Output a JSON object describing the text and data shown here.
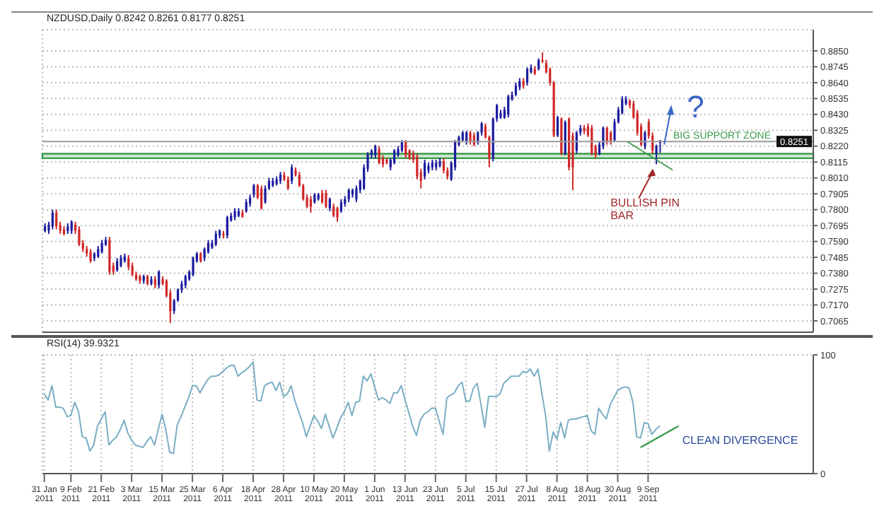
{
  "chart_data": [
    {
      "type": "candlestick",
      "title": "NZDUSD,Daily 0.8242 0.8261 0.8177 0.8251",
      "categories": [
        null,
        null,
        null,
        null,
        null,
        null,
        null,
        null,
        null,
        null,
        null,
        null,
        null,
        null,
        null,
        null,
        null,
        null,
        null,
        null,
        null,
        null,
        null,
        null,
        null,
        null,
        null,
        null,
        null,
        null,
        null,
        null,
        null,
        null,
        null,
        null,
        null,
        null,
        null,
        null,
        null,
        null,
        null,
        null,
        null,
        null,
        null,
        null,
        null,
        null,
        null,
        null,
        null,
        null,
        null,
        null,
        null,
        null,
        null,
        null,
        null,
        null,
        null,
        null,
        null,
        null,
        null,
        null,
        null,
        null,
        null,
        null,
        null,
        null,
        null,
        null,
        null,
        null,
        null,
        null,
        null,
        null,
        null,
        null,
        null,
        null,
        null,
        null,
        null,
        null,
        null,
        null,
        null,
        null,
        null,
        null,
        null,
        null,
        null,
        null,
        null,
        null,
        null,
        null,
        null,
        null,
        null,
        null,
        null,
        null,
        null,
        null,
        null,
        null,
        null,
        null,
        null,
        null,
        null,
        null,
        null,
        null,
        null,
        null,
        null,
        null,
        null,
        null,
        null,
        null,
        null,
        null,
        null,
        null,
        null,
        null,
        null,
        null,
        null,
        null,
        null,
        null,
        null,
        null,
        null,
        null,
        null,
        null,
        null,
        null,
        null,
        null,
        null,
        null,
        null,
        null,
        null,
        null,
        null,
        null,
        null,
        null,
        null,
        null,
        null,
        null,
        null,
        null,
        null,
        null,
        null,
        null,
        null,
        null,
        null,
        null,
        null,
        null,
        null,
        null,
        null,
        null,
        null,
        null,
        null,
        null,
        null,
        null,
        null,
        null,
        null,
        null,
        null,
        null,
        null,
        null,
        null,
        null,
        null,
        null,
        null,
        null,
        null
      ],
      "ohlc": [
        [
          0.766,
          0.771,
          0.765,
          0.769
        ],
        [
          0.766,
          0.772,
          0.764,
          0.77
        ],
        [
          0.769,
          0.78,
          0.767,
          0.778
        ],
        [
          0.778,
          0.78,
          0.767,
          0.769
        ],
        [
          0.77,
          0.772,
          0.764,
          0.766
        ],
        [
          0.767,
          0.769,
          0.763,
          0.764
        ],
        [
          0.766,
          0.771,
          0.764,
          0.769
        ],
        [
          0.766,
          0.773,
          0.764,
          0.772
        ],
        [
          0.77,
          0.772,
          0.764,
          0.766
        ],
        [
          0.767,
          0.769,
          0.756,
          0.757
        ],
        [
          0.758,
          0.76,
          0.752,
          0.754
        ],
        [
          0.754,
          0.756,
          0.749,
          0.751
        ],
        [
          0.752,
          0.754,
          0.745,
          0.746
        ],
        [
          0.748,
          0.752,
          0.746,
          0.751
        ],
        [
          0.749,
          0.756,
          0.748,
          0.754
        ],
        [
          0.752,
          0.76,
          0.751,
          0.758
        ],
        [
          0.757,
          0.762,
          0.756,
          0.76
        ],
        [
          0.76,
          0.762,
          0.737,
          0.739
        ],
        [
          0.743,
          0.745,
          0.737,
          0.739
        ],
        [
          0.74,
          0.748,
          0.739,
          0.746
        ],
        [
          0.743,
          0.75,
          0.742,
          0.748
        ],
        [
          0.746,
          0.751,
          0.745,
          0.749
        ],
        [
          0.748,
          0.75,
          0.74,
          0.742
        ],
        [
          0.743,
          0.745,
          0.736,
          0.737
        ],
        [
          0.737,
          0.739,
          0.733,
          0.734
        ],
        [
          0.736,
          0.737,
          0.731,
          0.733
        ],
        [
          0.733,
          0.737,
          0.731,
          0.736
        ],
        [
          0.736,
          0.737,
          0.73,
          0.731
        ],
        [
          0.731,
          0.736,
          0.73,
          0.734
        ],
        [
          0.734,
          0.736,
          0.728,
          0.73
        ],
        [
          0.73,
          0.74,
          0.728,
          0.739
        ],
        [
          0.734,
          0.736,
          0.73,
          0.731
        ],
        [
          0.733,
          0.734,
          0.722,
          0.723
        ],
        [
          0.725,
          0.727,
          0.705,
          0.713
        ],
        [
          0.713,
          0.721,
          0.711,
          0.72
        ],
        [
          0.72,
          0.728,
          0.719,
          0.727
        ],
        [
          0.727,
          0.733,
          0.725,
          0.731
        ],
        [
          0.73,
          0.737,
          0.728,
          0.736
        ],
        [
          0.734,
          0.74,
          0.733,
          0.739
        ],
        [
          0.737,
          0.749,
          0.736,
          0.748
        ],
        [
          0.746,
          0.752,
          0.745,
          0.751
        ],
        [
          0.751,
          0.752,
          0.745,
          0.746
        ],
        [
          0.748,
          0.755,
          0.746,
          0.754
        ],
        [
          0.752,
          0.76,
          0.751,
          0.758
        ],
        [
          0.755,
          0.76,
          0.754,
          0.758
        ],
        [
          0.757,
          0.766,
          0.756,
          0.764
        ],
        [
          0.763,
          0.767,
          0.761,
          0.766
        ],
        [
          0.764,
          0.766,
          0.761,
          0.763
        ],
        [
          0.763,
          0.776,
          0.761,
          0.775
        ],
        [
          0.773,
          0.778,
          0.772,
          0.776
        ],
        [
          0.775,
          0.781,
          0.773,
          0.779
        ],
        [
          0.776,
          0.781,
          0.775,
          0.779
        ],
        [
          0.778,
          0.78,
          0.775,
          0.775
        ],
        [
          0.779,
          0.787,
          0.778,
          0.785
        ],
        [
          0.784,
          0.79,
          0.782,
          0.788
        ],
        [
          0.79,
          0.797,
          0.788,
          0.796
        ],
        [
          0.796,
          0.797,
          0.787,
          0.788
        ],
        [
          0.794,
          0.796,
          0.78,
          0.781
        ],
        [
          0.785,
          0.796,
          0.784,
          0.794
        ],
        [
          0.794,
          0.801,
          0.793,
          0.799
        ],
        [
          0.796,
          0.801,
          0.795,
          0.799
        ],
        [
          0.797,
          0.802,
          0.796,
          0.8
        ],
        [
          0.799,
          0.805,
          0.797,
          0.803
        ],
        [
          0.803,
          0.805,
          0.799,
          0.8
        ],
        [
          0.8,
          0.802,
          0.793,
          0.794
        ],
        [
          0.799,
          0.81,
          0.797,
          0.808
        ],
        [
          0.806,
          0.808,
          0.802,
          0.803
        ],
        [
          0.803,
          0.805,
          0.795,
          0.796
        ],
        [
          0.796,
          0.797,
          0.786,
          0.787
        ],
        [
          0.788,
          0.79,
          0.781,
          0.782
        ],
        [
          0.787,
          0.789,
          0.778,
          0.782
        ],
        [
          0.785,
          0.791,
          0.784,
          0.79
        ],
        [
          0.787,
          0.791,
          0.786,
          0.79
        ],
        [
          0.791,
          0.793,
          0.784,
          0.785
        ],
        [
          0.791,
          0.793,
          0.781,
          0.782
        ],
        [
          0.781,
          0.788,
          0.779,
          0.787
        ],
        [
          0.782,
          0.784,
          0.775,
          0.776
        ],
        [
          0.781,
          0.782,
          0.772,
          0.775
        ],
        [
          0.779,
          0.787,
          0.778,
          0.785
        ],
        [
          0.784,
          0.789,
          0.782,
          0.787
        ],
        [
          0.787,
          0.794,
          0.785,
          0.793
        ],
        [
          0.79,
          0.794,
          0.788,
          0.793
        ],
        [
          0.787,
          0.796,
          0.785,
          0.794
        ],
        [
          0.793,
          0.8,
          0.791,
          0.799
        ],
        [
          0.794,
          0.81,
          0.793,
          0.808
        ],
        [
          0.807,
          0.818,
          0.805,
          0.817
        ],
        [
          0.816,
          0.82,
          0.814,
          0.819
        ],
        [
          0.816,
          0.823,
          0.814,
          0.822
        ],
        [
          0.82,
          0.822,
          0.81,
          0.811
        ],
        [
          0.814,
          0.816,
          0.808,
          0.81
        ],
        [
          0.813,
          0.814,
          0.81,
          0.811
        ],
        [
          0.808,
          0.814,
          0.806,
          0.813
        ],
        [
          0.811,
          0.82,
          0.81,
          0.819
        ],
        [
          0.816,
          0.822,
          0.815,
          0.82
        ],
        [
          0.819,
          0.826,
          0.818,
          0.825
        ],
        [
          0.825,
          0.826,
          0.814,
          0.816
        ],
        [
          0.819,
          0.82,
          0.813,
          0.814
        ],
        [
          0.817,
          0.819,
          0.811,
          0.813
        ],
        [
          0.815,
          0.817,
          0.8,
          0.802
        ],
        [
          0.805,
          0.807,
          0.794,
          0.799
        ],
        [
          0.802,
          0.813,
          0.8,
          0.811
        ],
        [
          0.806,
          0.811,
          0.804,
          0.809
        ],
        [
          0.808,
          0.813,
          0.806,
          0.811
        ],
        [
          0.808,
          0.813,
          0.806,
          0.811
        ],
        [
          0.809,
          0.814,
          0.808,
          0.812
        ],
        [
          0.812,
          0.814,
          0.804,
          0.806
        ],
        [
          0.806,
          0.808,
          0.8,
          0.802
        ],
        [
          0.8,
          0.812,
          0.799,
          0.811
        ],
        [
          0.808,
          0.826,
          0.806,
          0.825
        ],
        [
          0.823,
          0.829,
          0.822,
          0.828
        ],
        [
          0.826,
          0.832,
          0.825,
          0.831
        ],
        [
          0.825,
          0.832,
          0.823,
          0.831
        ],
        [
          0.831,
          0.832,
          0.823,
          0.825
        ],
        [
          0.829,
          0.831,
          0.822,
          0.823
        ],
        [
          0.825,
          0.832,
          0.823,
          0.831
        ],
        [
          0.831,
          0.838,
          0.829,
          0.837
        ],
        [
          0.835,
          0.837,
          0.827,
          0.828
        ],
        [
          0.828,
          0.829,
          0.808,
          0.814
        ],
        [
          0.814,
          0.841,
          0.812,
          0.84
        ],
        [
          0.84,
          0.85,
          0.838,
          0.849
        ],
        [
          0.841,
          0.846,
          0.84,
          0.844
        ],
        [
          0.841,
          0.848,
          0.84,
          0.846
        ],
        [
          0.843,
          0.856,
          0.841,
          0.855
        ],
        [
          0.853,
          0.858,
          0.852,
          0.856
        ],
        [
          0.856,
          0.864,
          0.855,
          0.862
        ],
        [
          0.861,
          0.867,
          0.859,
          0.865
        ],
        [
          0.865,
          0.867,
          0.86,
          0.862
        ],
        [
          0.864,
          0.874,
          0.862,
          0.873
        ],
        [
          0.871,
          0.876,
          0.87,
          0.874
        ],
        [
          0.873,
          0.875,
          0.869,
          0.87
        ],
        [
          0.873,
          0.88,
          0.872,
          0.879
        ],
        [
          0.879,
          0.884,
          0.877,
          0.878
        ],
        [
          0.877,
          0.879,
          0.87,
          0.871
        ],
        [
          0.873,
          0.874,
          0.862,
          0.864
        ],
        [
          0.864,
          0.865,
          0.828,
          0.829
        ],
        [
          0.829,
          0.842,
          0.828,
          0.841
        ],
        [
          0.84,
          0.841,
          0.816,
          0.817
        ],
        [
          0.817,
          0.839,
          0.816,
          0.838
        ],
        [
          0.84,
          0.841,
          0.806,
          0.808
        ],
        [
          0.829,
          0.831,
          0.793,
          0.808
        ],
        [
          0.819,
          0.832,
          0.817,
          0.831
        ],
        [
          0.831,
          0.836,
          0.829,
          0.834
        ],
        [
          0.834,
          0.836,
          0.83,
          0.832
        ],
        [
          0.835,
          0.837,
          0.828,
          0.829
        ],
        [
          0.834,
          0.836,
          0.816,
          0.817
        ],
        [
          0.822,
          0.823,
          0.814,
          0.816
        ],
        [
          0.817,
          0.825,
          0.816,
          0.823
        ],
        [
          0.822,
          0.835,
          0.82,
          0.834
        ],
        [
          0.834,
          0.835,
          0.823,
          0.825
        ],
        [
          0.831,
          0.832,
          0.823,
          0.825
        ],
        [
          0.826,
          0.84,
          0.825,
          0.838
        ],
        [
          0.838,
          0.848,
          0.837,
          0.846
        ],
        [
          0.844,
          0.855,
          0.843,
          0.853
        ],
        [
          0.85,
          0.855,
          0.849,
          0.853
        ],
        [
          0.852,
          0.853,
          0.847,
          0.849
        ],
        [
          0.85,
          0.852,
          0.84,
          0.841
        ],
        [
          0.844,
          0.846,
          0.829,
          0.831
        ],
        [
          0.835,
          0.837,
          0.822,
          0.823
        ],
        [
          0.822,
          0.832,
          0.82,
          0.831
        ],
        [
          0.838,
          0.84,
          0.827,
          0.829
        ],
        [
          0.829,
          0.831,
          0.817,
          0.819
        ],
        [
          0.817,
          0.823,
          0.81,
          0.822
        ],
        [
          0.8242,
          0.8261,
          0.8177,
          0.8251
        ],
        null,
        null,
        null,
        null,
        null,
        null,
        null,
        null,
        null,
        null,
        null,
        null,
        null,
        null,
        null,
        null,
        null,
        null,
        null,
        null,
        null,
        null,
        null,
        null,
        null,
        null,
        null,
        null,
        null,
        null,
        null,
        null,
        null,
        null,
        null,
        null,
        null,
        null,
        null,
        null
      ],
      "colors": [
        "#1c1ca0",
        "#1c1ca0",
        "#1c1ca0",
        "#d02828",
        "#d02828",
        "#d02828",
        "#1c1ca0",
        "#1c1ca0",
        "#d02828",
        "#d02828",
        "#d02828",
        "#d02828",
        "#d02828",
        "#1c1ca0",
        "#1c1ca0",
        "#1c1ca0",
        "#1c1ca0",
        "#d02828",
        "#d02828",
        "#1c1ca0",
        "#1c1ca0",
        "#1c1ca0",
        "#d02828",
        "#d02828",
        "#d02828",
        "#d02828",
        "#1c1ca0",
        "#d02828",
        "#1c1ca0",
        "#d02828",
        "#1c1ca0",
        "#d02828",
        "#d02828",
        "#d02828",
        "#1c1ca0",
        "#1c1ca0",
        "#1c1ca0",
        "#1c1ca0",
        "#1c1ca0",
        "#1c1ca0",
        "#1c1ca0",
        "#d02828",
        "#1c1ca0",
        "#1c1ca0",
        "#1c1ca0",
        "#1c1ca0",
        "#1c1ca0",
        "#d02828",
        "#1c1ca0",
        "#1c1ca0",
        "#1c1ca0",
        "#1c1ca0",
        "#d02828",
        "#1c1ca0",
        "#1c1ca0",
        "#1c1ca0",
        "#d02828",
        "#d02828",
        "#1c1ca0",
        "#1c1ca0",
        "#1c1ca0",
        "#1c1ca0",
        "#1c1ca0",
        "#d02828",
        "#d02828",
        "#1c1ca0",
        "#d02828",
        "#d02828",
        "#d02828",
        "#d02828",
        "#d02828",
        "#1c1ca0",
        "#1c1ca0",
        "#d02828",
        "#d02828",
        "#1c1ca0",
        "#d02828",
        "#d02828",
        "#1c1ca0",
        "#1c1ca0",
        "#1c1ca0",
        "#1c1ca0",
        "#1c1ca0",
        "#1c1ca0",
        "#1c1ca0",
        "#1c1ca0",
        "#1c1ca0",
        "#1c1ca0",
        "#d02828",
        "#d02828",
        "#d02828",
        "#1c1ca0",
        "#1c1ca0",
        "#1c1ca0",
        "#1c1ca0",
        "#d02828",
        "#d02828",
        "#d02828",
        "#d02828",
        "#d02828",
        "#1c1ca0",
        "#1c1ca0",
        "#1c1ca0",
        "#1c1ca0",
        "#1c1ca0",
        "#d02828",
        "#d02828",
        "#1c1ca0",
        "#1c1ca0",
        "#1c1ca0",
        "#1c1ca0",
        "#1c1ca0",
        "#d02828",
        "#d02828",
        "#1c1ca0",
        "#1c1ca0",
        "#d02828",
        "#d02828",
        "#1c1ca0",
        "#1c1ca0",
        "#1c1ca0",
        "#1c1ca0",
        "#1c1ca0",
        "#1c1ca0",
        "#1c1ca0",
        "#1c1ca0",
        "#d02828",
        "#1c1ca0",
        "#1c1ca0",
        "#d02828",
        "#1c1ca0",
        "#d02828",
        "#d02828",
        "#d02828",
        "#d02828",
        "#1c1ca0",
        "#d02828",
        "#1c1ca0",
        "#d02828",
        "#d02828",
        "#1c1ca0",
        "#1c1ca0",
        "#d02828",
        "#d02828",
        "#d02828",
        "#d02828",
        "#1c1ca0",
        "#1c1ca0",
        "#d02828",
        "#d02828",
        "#1c1ca0",
        "#1c1ca0",
        "#1c1ca0",
        "#1c1ca0",
        "#d02828",
        "#d02828",
        "#d02828",
        "#d02828",
        "#1c1ca0",
        "#d02828",
        "#d02828",
        "#1c1ca0",
        "#1c1ca0",
        null,
        null,
        null,
        null,
        null,
        null,
        null,
        null,
        null,
        null,
        null,
        null,
        null,
        null,
        null,
        null,
        null,
        null,
        null,
        null,
        null,
        null,
        null,
        null,
        null,
        null,
        null,
        null,
        null,
        null,
        null,
        null,
        null,
        null,
        null,
        null,
        null,
        null,
        null,
        null
      ],
      "ylim": [
        0.699,
        0.899
      ],
      "yticks": [
        {
          "value": 0.7065,
          "label": "0.7065"
        },
        {
          "value": 0.717,
          "label": "0.7170"
        },
        {
          "value": 0.7275,
          "label": "0.7275"
        },
        {
          "value": 0.738,
          "label": "0.7380"
        },
        {
          "value": 0.7485,
          "label": "0.7485"
        },
        {
          "value": 0.759,
          "label": "0.7590"
        },
        {
          "value": 0.7695,
          "label": "0.7695"
        },
        {
          "value": 0.78,
          "label": "0.7800"
        },
        {
          "value": 0.7905,
          "label": "0.7905"
        },
        {
          "value": 0.801,
          "label": "0.8010"
        },
        {
          "value": 0.8115,
          "label": "0.8115"
        },
        {
          "value": 0.822,
          "label": "0.8220"
        },
        {
          "value": 0.8325,
          "label": "0.8325"
        },
        {
          "value": 0.843,
          "label": "0.8430"
        },
        {
          "value": 0.8535,
          "label": "0.8535"
        },
        {
          "value": 0.864,
          "label": "0.8640"
        },
        {
          "value": 0.8745,
          "label": "0.8745"
        },
        {
          "value": 0.885,
          "label": "0.8850"
        }
      ],
      "grid": true,
      "tick_labels": "y",
      "bands": [
        {
          "axis": "y",
          "from": 0.814,
          "to": 0.817,
          "label": "BIG SUPPORT ZONE",
          "color": "#3a9a4a"
        }
      ],
      "ref_lines": [
        {
          "axis": "y",
          "value": 0.8251,
          "label": "0.8251",
          "color": "#9a9a9a"
        }
      ],
      "annotations": [
        "BULLISH PIN BAR",
        "?"
      ]
    },
    {
      "type": "line",
      "title": "RSI(14) 39.9321",
      "categories": [
        "31 Jan 2011",
        null,
        null,
        null,
        null,
        null,
        null,
        "9 Feb 2011",
        null,
        null,
        null,
        null,
        null,
        null,
        null,
        "21 Feb 2011",
        null,
        null,
        null,
        null,
        null,
        null,
        null,
        "3 Mar 2011",
        null,
        null,
        null,
        null,
        null,
        null,
        null,
        "15 Mar 2011",
        null,
        null,
        null,
        null,
        null,
        null,
        null,
        "25 Mar 2011",
        null,
        null,
        null,
        null,
        null,
        null,
        null,
        "6 Apr 2011",
        null,
        null,
        null,
        null,
        null,
        null,
        null,
        "18 Apr 2011",
        null,
        null,
        null,
        null,
        null,
        null,
        null,
        "28 Apr 2011",
        null,
        null,
        null,
        null,
        null,
        null,
        null,
        "10 May 2011",
        null,
        null,
        null,
        null,
        null,
        null,
        null,
        "20 May 2011",
        null,
        null,
        null,
        null,
        null,
        null,
        null,
        "1 Jun 2011",
        null,
        null,
        null,
        null,
        null,
        null,
        null,
        "13 Jun 2011",
        null,
        null,
        null,
        null,
        null,
        null,
        null,
        "23 Jun 2011",
        null,
        null,
        null,
        null,
        null,
        null,
        null,
        "5 Jul 2011",
        null,
        null,
        null,
        null,
        null,
        null,
        null,
        "15 Jul 2011",
        null,
        null,
        null,
        null,
        null,
        null,
        null,
        "27 Jul 2011",
        null,
        null,
        null,
        null,
        null,
        null,
        null,
        "8 Aug 2011",
        null,
        null,
        null,
        null,
        null,
        null,
        null,
        "18 Aug 2011",
        null,
        null,
        null,
        null,
        null,
        null,
        null,
        "30 Aug 2011",
        null,
        null,
        null,
        null,
        null,
        null,
        null,
        "9 Sep 2011",
        null,
        null,
        null,
        null,
        null,
        null,
        null,
        null,
        null,
        null,
        null,
        null,
        null,
        null,
        null,
        null,
        null,
        null,
        null,
        null,
        null,
        null,
        null,
        null,
        null,
        null,
        null,
        null,
        null,
        null,
        null,
        null,
        null,
        null,
        null,
        null,
        null,
        null,
        null,
        null,
        null,
        null,
        null
      ],
      "values": [
        67,
        62,
        74,
        56,
        56,
        55,
        48,
        49,
        60,
        52,
        31,
        30,
        19,
        24,
        40,
        46,
        52,
        24,
        28,
        31,
        37,
        45,
        34,
        28,
        24,
        23,
        22,
        27,
        31,
        24,
        37,
        50,
        37,
        18,
        17,
        41,
        48,
        56,
        64,
        74,
        74,
        68,
        74,
        79,
        82,
        82,
        83,
        86,
        89,
        91,
        91,
        82,
        85,
        87,
        90,
        94,
        62,
        61,
        74,
        76,
        77,
        70,
        77,
        65,
        67,
        74,
        61,
        52,
        43,
        31,
        40,
        49,
        44,
        38,
        50,
        40,
        30,
        38,
        47,
        52,
        60,
        49,
        60,
        61,
        82,
        78,
        84,
        73,
        62,
        64,
        62,
        59,
        68,
        68,
        74,
        62,
        51,
        40,
        32,
        45,
        50,
        52,
        55,
        55,
        44,
        33,
        64,
        66,
        68,
        74,
        77,
        61,
        61,
        72,
        76,
        58,
        39,
        65,
        65,
        65,
        67,
        76,
        79,
        82,
        82,
        82,
        86,
        85,
        88,
        82,
        88,
        68,
        49,
        19,
        35,
        29,
        43,
        30,
        45,
        46,
        46,
        47,
        48,
        49,
        36,
        33,
        55,
        50,
        46,
        58,
        64,
        70,
        72,
        73,
        72,
        60,
        31,
        30,
        43,
        42,
        33,
        37,
        39.9321,
        null,
        null,
        null,
        null,
        null,
        null,
        null,
        null,
        null,
        null,
        null,
        null,
        null,
        null,
        null,
        null,
        null,
        null,
        null,
        null,
        null,
        null,
        null,
        null,
        null,
        null,
        null,
        null,
        null,
        null,
        null,
        null,
        null,
        null,
        null,
        null,
        null,
        null,
        null,
        null
      ],
      "color": "#7aaec4",
      "ylim": [
        0,
        100
      ],
      "yticks": [
        0,
        100
      ],
      "grid": true,
      "annotations": [
        "CLEAN DIVERGENCE"
      ]
    }
  ]
}
